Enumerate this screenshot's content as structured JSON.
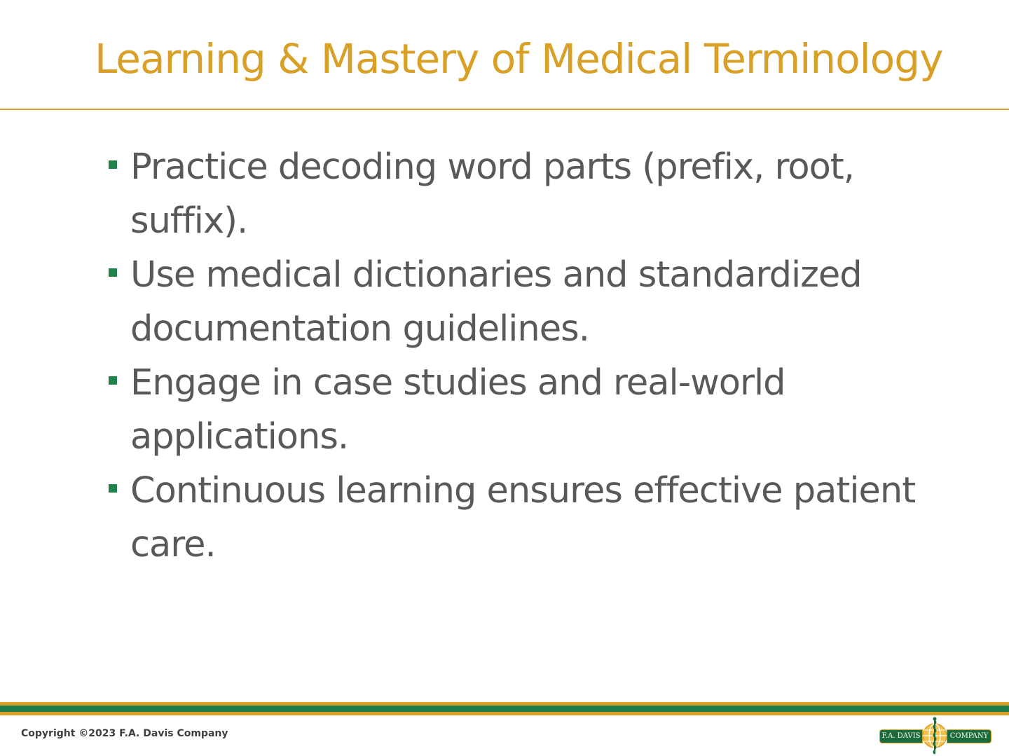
{
  "slide": {
    "title": "Learning & Mastery of Medical Terminology",
    "bullets": [
      "Practice decoding word parts (prefix, root, suffix).",
      "Use medical dictionaries and standardized documentation guidelines.",
      "Engage in case studies and real-world applications.",
      "Continuous learning ensures effective patient care."
    ]
  },
  "footer": {
    "copyright": "Copyright ©2023 F.A. Davis Company",
    "logo": {
      "left_text": "F.A. DAVIS",
      "right_text": "COMPANY",
      "emblem_icon": "caduceus-globe-icon"
    }
  },
  "colors": {
    "title": "#D9A028",
    "body_text": "#58595B",
    "bullet": "#1E8449",
    "footer_gold": "#D9A028",
    "footer_green": "#1E7A4A"
  }
}
